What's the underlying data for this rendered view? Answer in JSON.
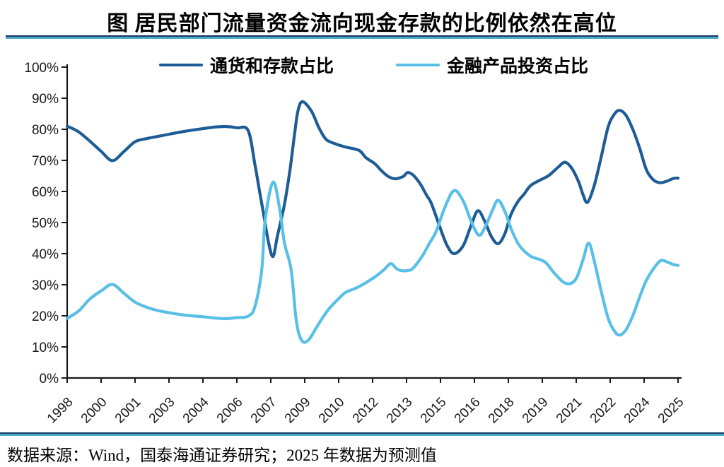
{
  "title": "图  居民部门流量资金流向现金存款的比例依然在高位",
  "source_note": "数据来源：Wind，国泰海通证券研究；2025 年数据为预测值",
  "separator": {
    "navy": "#17375E",
    "teal": "#4AACC8"
  },
  "axis_color": "#1a1a1a",
  "legend": {
    "items": [
      {
        "label": "通货和存款占比",
        "color": "#1D5C96"
      },
      {
        "label": "金融产品投资占比",
        "color": "#58BFE6"
      }
    ]
  },
  "chart_data": {
    "type": "line",
    "title": "图  居民部门流量资金流向现金存款的比例依然在高位",
    "legend_position": "top",
    "grid": false,
    "x_axis": {
      "tick_labels": [
        "1998",
        "2000",
        "2001",
        "2003",
        "2004",
        "2006",
        "2007",
        "2009",
        "2010",
        "2012",
        "2013",
        "2015",
        "2016",
        "2018",
        "2019",
        "2021",
        "2022",
        "2024",
        "2025"
      ],
      "range_years": [
        1998,
        2025
      ],
      "note": "semi-annual observations, one tick every 1.5 years"
    },
    "y_axis": {
      "tick_labels": [
        "0%",
        "10%",
        "20%",
        "30%",
        "40%",
        "50%",
        "60%",
        "70%",
        "80%",
        "90%",
        "100%"
      ],
      "min": 0,
      "max": 100,
      "unit": "%"
    },
    "series": [
      {
        "name": "通货和存款占比",
        "key": "currency-and-deposits-share",
        "color": "#1D5C96",
        "points": [
          [
            1998.0,
            81.0
          ],
          [
            1998.5,
            79.2
          ],
          [
            1999.0,
            76.2
          ],
          [
            1999.5,
            72.9
          ],
          [
            2000.0,
            69.9
          ],
          [
            2000.5,
            72.8
          ],
          [
            2001.0,
            76.0
          ],
          [
            2001.5,
            77.0
          ],
          [
            2002.0,
            77.7
          ],
          [
            2002.5,
            78.4
          ],
          [
            2003.0,
            79.1
          ],
          [
            2003.5,
            79.7
          ],
          [
            2004.0,
            80.2
          ],
          [
            2004.5,
            80.7
          ],
          [
            2005.0,
            80.9
          ],
          [
            2005.5,
            80.5
          ],
          [
            2006.0,
            79.6
          ],
          [
            2006.3,
            68.6
          ],
          [
            2006.5,
            60.2
          ],
          [
            2006.7,
            52.0
          ],
          [
            2006.9,
            43.6
          ],
          [
            2007.1,
            39.1
          ],
          [
            2007.3,
            45.9
          ],
          [
            2007.6,
            55.7
          ],
          [
            2007.85,
            67.0
          ],
          [
            2008.05,
            78.4
          ],
          [
            2008.2,
            85.9
          ],
          [
            2008.4,
            88.9
          ],
          [
            2008.8,
            85.8
          ],
          [
            2009.1,
            80.9
          ],
          [
            2009.3,
            78.2
          ],
          [
            2009.5,
            76.4
          ],
          [
            2009.9,
            75.2
          ],
          [
            2010.3,
            74.3
          ],
          [
            2010.9,
            73.2
          ],
          [
            2011.2,
            70.9
          ],
          [
            2011.6,
            68.9
          ],
          [
            2011.9,
            66.6
          ],
          [
            2012.2,
            64.8
          ],
          [
            2012.5,
            64.1
          ],
          [
            2012.85,
            64.8
          ],
          [
            2013.05,
            66.1
          ],
          [
            2013.3,
            65.2
          ],
          [
            2013.6,
            62.5
          ],
          [
            2013.9,
            58.6
          ],
          [
            2014.1,
            56.1
          ],
          [
            2014.5,
            48.0
          ],
          [
            2014.8,
            42.5
          ],
          [
            2015.1,
            40.0
          ],
          [
            2015.5,
            42.5
          ],
          [
            2015.85,
            49.0
          ],
          [
            2016.15,
            53.8
          ],
          [
            2016.45,
            50.5
          ],
          [
            2016.75,
            45.5
          ],
          [
            2017.05,
            43.2
          ],
          [
            2017.35,
            46.5
          ],
          [
            2017.6,
            52.3
          ],
          [
            2017.9,
            56.5
          ],
          [
            2018.2,
            59.2
          ],
          [
            2018.5,
            62.0
          ],
          [
            2019.0,
            64.0
          ],
          [
            2019.3,
            65.2
          ],
          [
            2019.7,
            67.8
          ],
          [
            2020.0,
            69.4
          ],
          [
            2020.3,
            67.5
          ],
          [
            2020.6,
            63.2
          ],
          [
            2020.8,
            59.0
          ],
          [
            2021.0,
            56.5
          ],
          [
            2021.3,
            62.0
          ],
          [
            2021.6,
            71.0
          ],
          [
            2021.9,
            80.5
          ],
          [
            2022.15,
            84.5
          ],
          [
            2022.4,
            86.1
          ],
          [
            2022.7,
            84.5
          ],
          [
            2023.0,
            80.0
          ],
          [
            2023.3,
            74.0
          ],
          [
            2023.6,
            67.0
          ],
          [
            2023.9,
            63.8
          ],
          [
            2024.2,
            62.8
          ],
          [
            2024.5,
            63.3
          ],
          [
            2024.8,
            64.2
          ],
          [
            2025.0,
            64.3
          ]
        ]
      },
      {
        "name": "金融产品投资占比",
        "key": "financial-product-investment-share",
        "color": "#58BFE6",
        "points": [
          [
            1998.0,
            19.2
          ],
          [
            1998.5,
            21.5
          ],
          [
            1999.0,
            25.4
          ],
          [
            1999.5,
            28.0
          ],
          [
            2000.0,
            30.1
          ],
          [
            2000.5,
            27.3
          ],
          [
            2001.0,
            24.4
          ],
          [
            2001.5,
            22.8
          ],
          [
            2002.0,
            21.7
          ],
          [
            2002.5,
            21.0
          ],
          [
            2003.0,
            20.4
          ],
          [
            2003.5,
            20.0
          ],
          [
            2004.0,
            19.7
          ],
          [
            2004.5,
            19.3
          ],
          [
            2005.0,
            19.1
          ],
          [
            2005.5,
            19.4
          ],
          [
            2006.0,
            19.9
          ],
          [
            2006.3,
            23.0
          ],
          [
            2006.6,
            34.8
          ],
          [
            2006.75,
            50.7
          ],
          [
            2007.1,
            63.0
          ],
          [
            2007.4,
            54.1
          ],
          [
            2007.6,
            43.6
          ],
          [
            2007.9,
            34.8
          ],
          [
            2008.1,
            20.0
          ],
          [
            2008.25,
            14.0
          ],
          [
            2008.45,
            11.5
          ],
          [
            2008.7,
            12.5
          ],
          [
            2009.0,
            16.0
          ],
          [
            2009.3,
            19.5
          ],
          [
            2009.6,
            22.5
          ],
          [
            2010.0,
            25.5
          ],
          [
            2010.3,
            27.5
          ],
          [
            2010.7,
            28.7
          ],
          [
            2011.1,
            30.2
          ],
          [
            2011.6,
            32.5
          ],
          [
            2012.0,
            34.8
          ],
          [
            2012.3,
            36.8
          ],
          [
            2012.55,
            35.2
          ],
          [
            2012.8,
            34.5
          ],
          [
            2013.1,
            34.6
          ],
          [
            2013.3,
            35.4
          ],
          [
            2013.7,
            39.3
          ],
          [
            2014.0,
            43.2
          ],
          [
            2014.3,
            47.0
          ],
          [
            2014.7,
            55.0
          ],
          [
            2015.1,
            60.3
          ],
          [
            2015.5,
            57.0
          ],
          [
            2015.85,
            50.5
          ],
          [
            2016.2,
            45.9
          ],
          [
            2016.5,
            49.0
          ],
          [
            2016.8,
            54.0
          ],
          [
            2017.05,
            57.2
          ],
          [
            2017.35,
            53.5
          ],
          [
            2017.65,
            47.5
          ],
          [
            2017.95,
            43.0
          ],
          [
            2018.25,
            40.5
          ],
          [
            2018.55,
            38.9
          ],
          [
            2019.1,
            37.4
          ],
          [
            2019.5,
            34.0
          ],
          [
            2019.9,
            31.0
          ],
          [
            2020.2,
            30.3
          ],
          [
            2020.5,
            32.0
          ],
          [
            2020.8,
            38.0
          ],
          [
            2021.05,
            43.4
          ],
          [
            2021.3,
            37.5
          ],
          [
            2021.6,
            28.0
          ],
          [
            2021.9,
            19.5
          ],
          [
            2022.15,
            15.5
          ],
          [
            2022.4,
            13.8
          ],
          [
            2022.7,
            15.5
          ],
          [
            2023.0,
            20.0
          ],
          [
            2023.3,
            26.0
          ],
          [
            2023.6,
            31.4
          ],
          [
            2023.95,
            35.5
          ],
          [
            2024.25,
            37.8
          ],
          [
            2024.55,
            37.2
          ],
          [
            2024.8,
            36.5
          ],
          [
            2025.0,
            36.2
          ]
        ]
      }
    ]
  }
}
